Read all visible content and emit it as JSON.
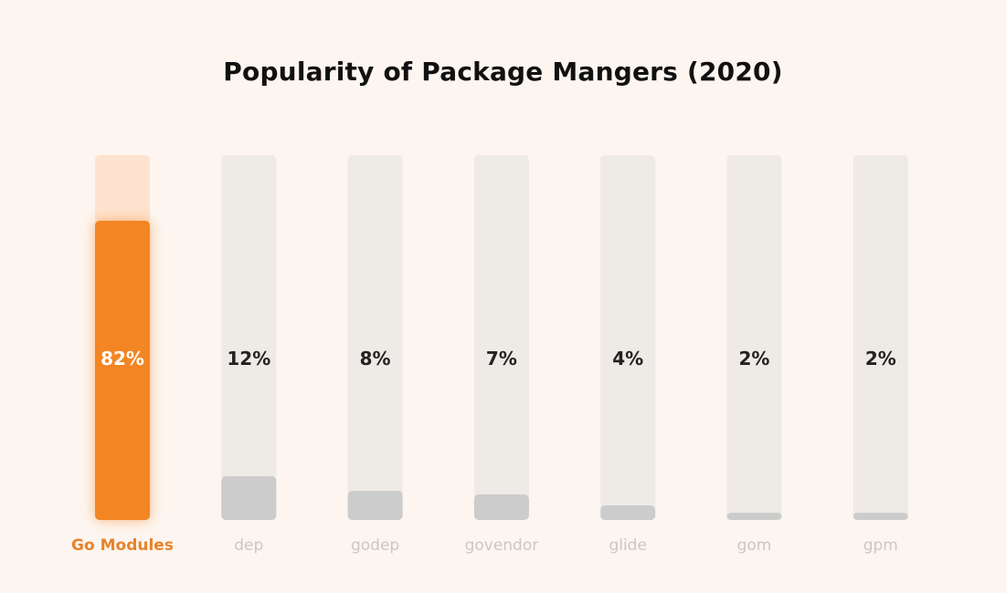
{
  "colors": {
    "background": "#fdf5ef",
    "track": "#eeeae6",
    "highlight_track": "#fde3cf",
    "highlight_bar": "#f38522",
    "muted_bar": "#cccccc",
    "highlight_value_text": "#ffffff",
    "value_text": "#222222",
    "highlight_label": "#e7832a",
    "muted_label": "#c8c8c8"
  },
  "chart_data": {
    "type": "bar",
    "title": "Popularity of Package Mangers (2020)",
    "categories": [
      "Go Modules",
      "dep",
      "godep",
      "govendor",
      "glide",
      "gom",
      "gpm"
    ],
    "values": [
      82,
      12,
      8,
      7,
      4,
      2,
      2
    ],
    "value_labels": [
      "82%",
      "12%",
      "8%",
      "7%",
      "4%",
      "2%",
      "2%"
    ],
    "highlight_index": 0,
    "ylim": [
      0,
      100
    ],
    "xlabel": "",
    "ylabel": "",
    "grid": false,
    "legend": "none"
  }
}
